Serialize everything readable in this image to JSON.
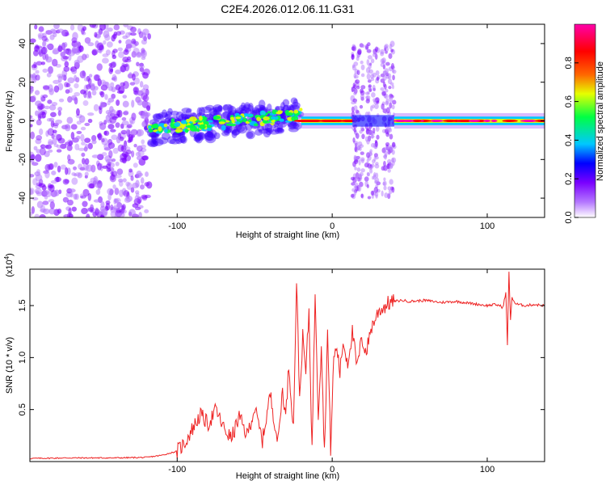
{
  "title": "C2E4.2026.012.06.11.G31",
  "chart_data": [
    {
      "type": "heatmap",
      "xlabel": "Height of straight line (km)",
      "ylabel": "Frequency (Hz)",
      "xlim": [
        -195,
        137
      ],
      "ylim": [
        -50,
        50
      ],
      "x_ticks": [
        -100,
        0,
        100
      ],
      "x_tick_labels": [
        "-100",
        "0",
        "100"
      ],
      "y_ticks": [
        -40,
        -20,
        0,
        20,
        40
      ],
      "y_tick_labels": [
        "-40",
        "-20",
        "0",
        "20",
        "40"
      ],
      "colorbar": {
        "label": "Normalized spectral amplitude",
        "range": [
          0,
          1
        ],
        "ticks": [
          0,
          0.2,
          0.4,
          0.6,
          0.8
        ],
        "tick_labels": [
          "0.0",
          "0.2",
          "0.4",
          "0.6",
          "0.8"
        ],
        "colors": [
          "#ffffff",
          "#7a00ff",
          "#0000ff",
          "#00c8ff",
          "#00ff44",
          "#e6ff00",
          "#ff6600",
          "#ff0000",
          "#ff00aa"
        ]
      },
      "regions": [
        {
          "x": [
            -195,
            -118
          ],
          "y": [
            -50,
            50
          ],
          "amplitude": 0.12,
          "pattern": "noise"
        },
        {
          "x": [
            -118,
            -20
          ],
          "y": [
            -8,
            8
          ],
          "amplitude": 0.45,
          "pattern": "rising-band"
        },
        {
          "x": [
            -20,
            13
          ],
          "y": [
            -2,
            2
          ],
          "amplitude": 0.8,
          "pattern": "line"
        },
        {
          "x": [
            13,
            40
          ],
          "y": [
            -40,
            40
          ],
          "amplitude": 0.12,
          "pattern": "bursts"
        },
        {
          "x": [
            40,
            137
          ],
          "y": [
            -2,
            2
          ],
          "amplitude": 0.9,
          "pattern": "line"
        }
      ],
      "grid": false
    },
    {
      "type": "line",
      "xlabel": "Height of straight line (km)",
      "ylabel": "SNR (10 * v/v)",
      "y_multiplier_label": "(x10",
      "y_multiplier_exponent": "4",
      "xlim": [
        -195,
        137
      ],
      "ylim": [
        0,
        18500
      ],
      "x_ticks": [
        -100,
        0,
        100
      ],
      "x_tick_labels": [
        "-100",
        "0",
        "100"
      ],
      "y_ticks": [
        5000,
        10000,
        15000
      ],
      "y_tick_labels": [
        "0.5",
        "1.0",
        "1.5"
      ],
      "color": "#ee2222",
      "grid": false,
      "series": [
        {
          "x": [
            -195,
            -170,
            -140,
            -120,
            -110,
            -100,
            -95,
            -90,
            -85,
            -80,
            -75,
            -70,
            -65,
            -60,
            -55,
            -50,
            -45,
            -40,
            -35,
            -32,
            -30,
            -28,
            -25,
            -23,
            -21,
            -19,
            -17,
            -15,
            -13,
            -11,
            -9,
            -7,
            -5,
            -3,
            -1,
            1,
            3,
            5,
            7,
            10,
            13,
            16,
            19,
            22,
            25,
            28,
            30,
            33,
            36,
            40,
            45,
            50,
            60,
            70,
            80,
            90,
            100,
            105,
            108,
            110,
            112,
            113,
            114,
            115,
            116,
            118,
            120,
            125,
            130,
            137
          ],
          "y": [
            300,
            350,
            350,
            400,
            600,
            1000,
            1800,
            3200,
            4500,
            3600,
            5000,
            3200,
            2200,
            4300,
            2500,
            5100,
            2000,
            6500,
            1800,
            7000,
            4200,
            9300,
            3200,
            17500,
            6000,
            12000,
            8500,
            14500,
            1200,
            16500,
            4500,
            11200,
            800,
            12500,
            1200,
            10000,
            11000,
            8500,
            11500,
            9500,
            12500,
            9000,
            11800,
            10500,
            12800,
            13800,
            14500,
            14800,
            15200,
            15400,
            15500,
            15400,
            15500,
            15300,
            15400,
            15200,
            15000,
            15100,
            15000,
            14800,
            16200,
            11300,
            18300,
            13500,
            15800,
            15200,
            15100,
            15000,
            15100,
            15000
          ]
        }
      ]
    }
  ]
}
